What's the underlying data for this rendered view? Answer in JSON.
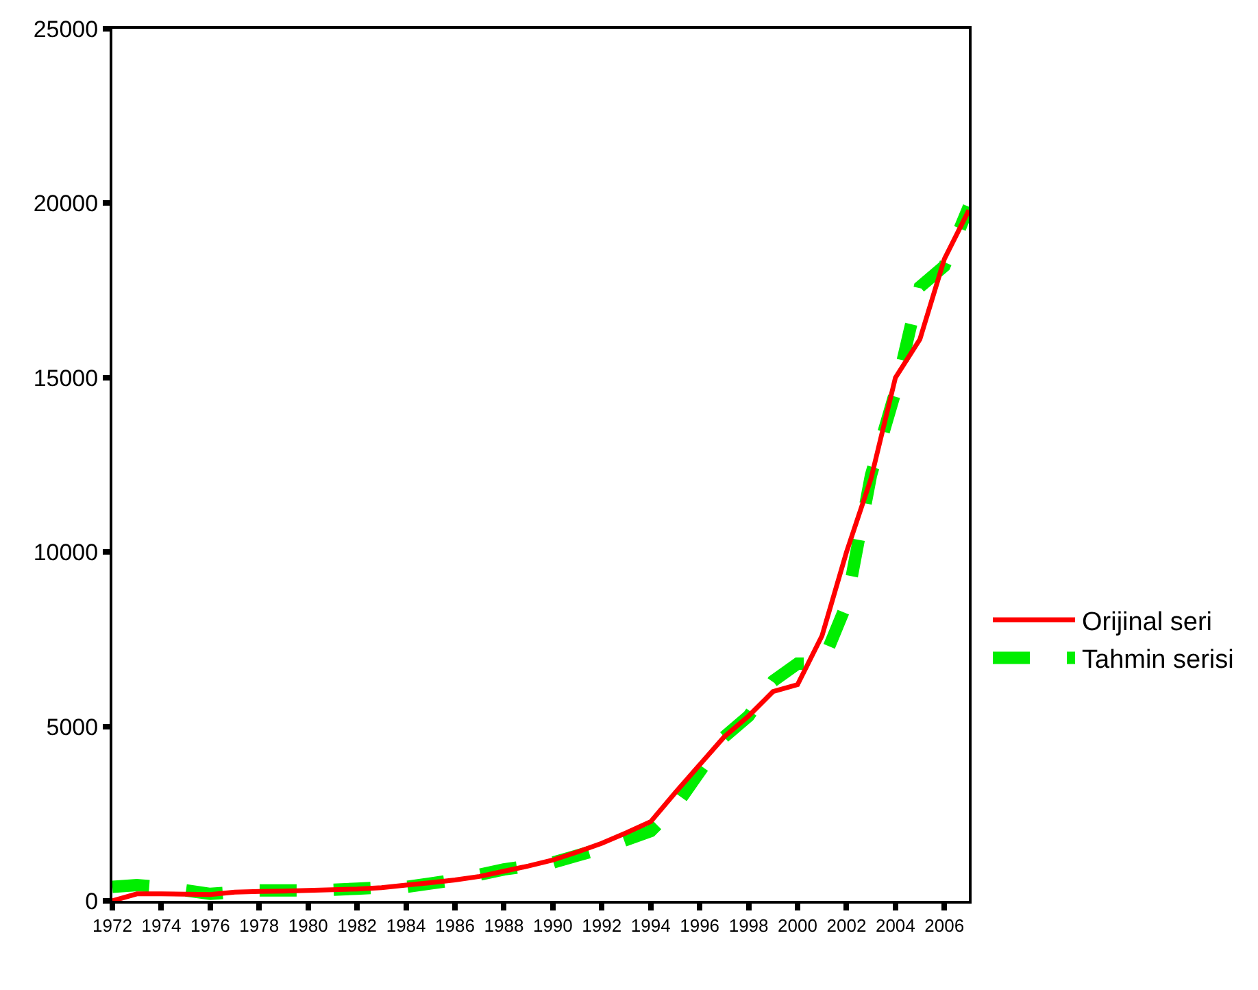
{
  "chart_data": {
    "type": "line",
    "x": [
      1972,
      1973,
      1974,
      1975,
      1976,
      1977,
      1978,
      1979,
      1980,
      1981,
      1982,
      1983,
      1984,
      1985,
      1986,
      1987,
      1988,
      1989,
      1990,
      1991,
      1992,
      1993,
      1994,
      1995,
      1996,
      1997,
      1998,
      1999,
      2000,
      2001,
      2002,
      2003,
      2004,
      2005,
      2006,
      2007
    ],
    "series": [
      {
        "name": "Orijinal seri",
        "color": "#ff0000",
        "line_style": "solid",
        "values": [
          0,
          200,
          200,
          190,
          180,
          250,
          270,
          280,
          300,
          320,
          340,
          380,
          450,
          520,
          600,
          700,
          850,
          1000,
          1170,
          1400,
          1650,
          1950,
          2270,
          3100,
          3900,
          4700,
          5300,
          6000,
          6200,
          7600,
          10000,
          12100,
          15000,
          16100,
          18400,
          19800
        ]
      },
      {
        "name": "Tahmin serisi",
        "color": "#00ee00",
        "line_style": "dashed",
        "values": [
          400,
          450,
          400,
          300,
          200,
          250,
          300,
          300,
          300,
          320,
          350,
          380,
          400,
          500,
          600,
          750,
          900,
          1000,
          1100,
          1300,
          1500,
          1750,
          2000,
          2700,
          3700,
          4700,
          5300,
          6300,
          6800,
          6800,
          8500,
          12200,
          14600,
          17600,
          18200,
          19900
        ]
      }
    ],
    "xlim": [
      1972,
      2007
    ],
    "xticks": [
      1972,
      1974,
      1976,
      1978,
      1980,
      1982,
      1984,
      1986,
      1988,
      1990,
      1992,
      1994,
      1996,
      1998,
      2000,
      2002,
      2004,
      2006
    ],
    "ylim": [
      0,
      25000
    ],
    "yticks": [
      0,
      5000,
      10000,
      15000,
      20000,
      25000
    ],
    "legend": "right",
    "marker": "none"
  }
}
